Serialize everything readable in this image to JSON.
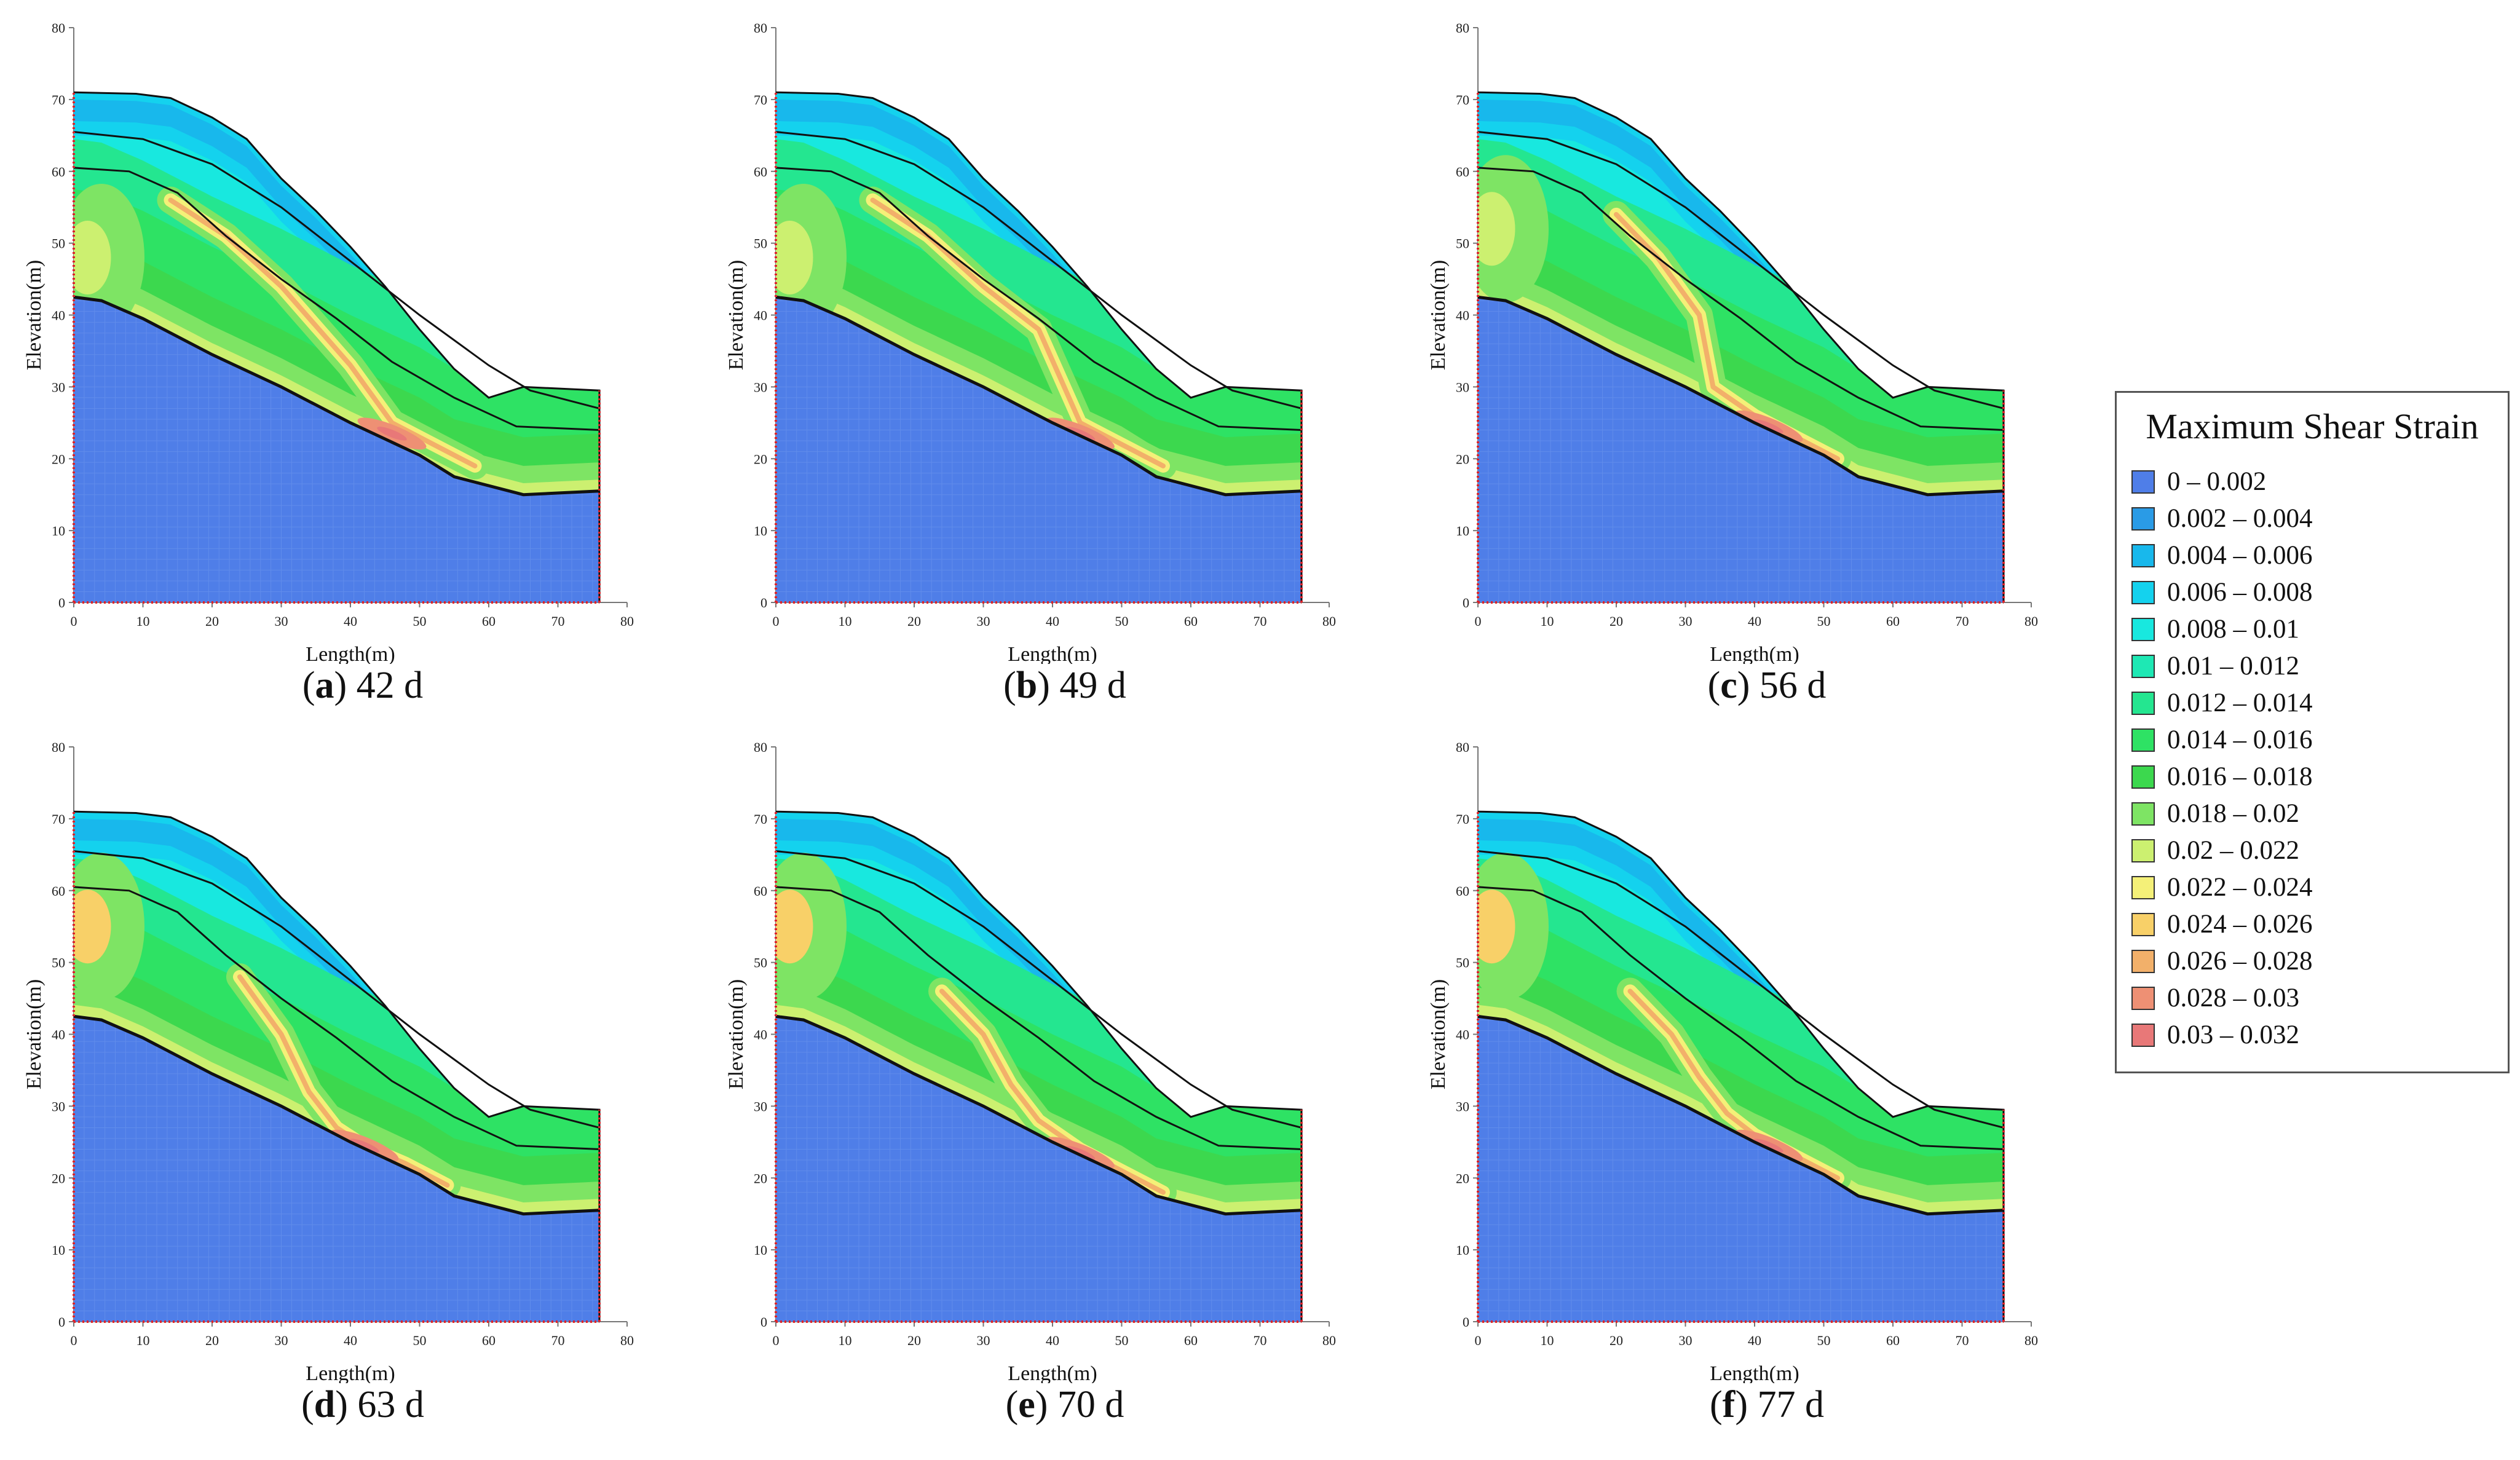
{
  "chart_data": {
    "type": "contour",
    "title": "Maximum Shear Strain",
    "xlabel": "Length(m)",
    "ylabel": "Elevation(m)",
    "xlim": [
      0,
      80
    ],
    "ylim": [
      0,
      80
    ],
    "xticks": [
      "0",
      "10",
      "20",
      "30",
      "40",
      "50",
      "60",
      "70",
      "80"
    ],
    "yticks": [
      "0",
      "10",
      "20",
      "30",
      "40",
      "50",
      "60",
      "70",
      "80"
    ],
    "slope_surface": [
      [
        0,
        71
      ],
      [
        9,
        70.8
      ],
      [
        14,
        70.2
      ],
      [
        20,
        67.5
      ],
      [
        25,
        64.5
      ],
      [
        30,
        59
      ],
      [
        35,
        54.5
      ],
      [
        40,
        49.5
      ],
      [
        45,
        44
      ],
      [
        50,
        38
      ],
      [
        55,
        32.5
      ],
      [
        60,
        28.5
      ],
      [
        65,
        30
      ],
      [
        76,
        29.5
      ]
    ],
    "bedrock_surface": [
      [
        0,
        42.5
      ],
      [
        4,
        42
      ],
      [
        10,
        39.5
      ],
      [
        20,
        34.5
      ],
      [
        30,
        30
      ],
      [
        40,
        25
      ],
      [
        50,
        20.5
      ],
      [
        55,
        17.5
      ],
      [
        65,
        15
      ],
      [
        76,
        15.5
      ]
    ],
    "layer_boundaries": [
      [
        [
          0,
          65.5
        ],
        [
          10,
          64.5
        ],
        [
          20,
          61
        ],
        [
          30,
          55
        ],
        [
          40,
          47.5
        ],
        [
          50,
          40
        ],
        [
          60,
          33
        ],
        [
          66,
          29.5
        ],
        [
          76,
          27
        ]
      ],
      [
        [
          0,
          60.5
        ],
        [
          8,
          60
        ],
        [
          15,
          57
        ],
        [
          22,
          51
        ],
        [
          30,
          45
        ],
        [
          38,
          39.5
        ],
        [
          46,
          33.5
        ],
        [
          55,
          28.5
        ],
        [
          64,
          24.5
        ],
        [
          76,
          24
        ]
      ]
    ],
    "legend": {
      "title": "Maximum Shear Strain",
      "classes": [
        {
          "range": "0 – 0.002",
          "color": "#4f7ee8"
        },
        {
          "range": "0.002 – 0.004",
          "color": "#2a9be6"
        },
        {
          "range": "0.004 – 0.006",
          "color": "#18b8ec"
        },
        {
          "range": "0.006 – 0.008",
          "color": "#14d2ee"
        },
        {
          "range": "0.008 – 0.01",
          "color": "#18e8df"
        },
        {
          "range": "0.01 – 0.012",
          "color": "#1ee8b4"
        },
        {
          "range": "0.012 – 0.014",
          "color": "#24e690"
        },
        {
          "range": "0.014 – 0.016",
          "color": "#2ee264"
        },
        {
          "range": "0.016 – 0.018",
          "color": "#3cd84e"
        },
        {
          "range": "0.018 – 0.02",
          "color": "#7ee464"
        },
        {
          "range": "0.02 – 0.022",
          "color": "#ccf070"
        },
        {
          "range": "0.022 – 0.024",
          "color": "#f4f078"
        },
        {
          "range": "0.024 – 0.026",
          "color": "#f8d068"
        },
        {
          "range": "0.026 – 0.028",
          "color": "#f2b06a"
        },
        {
          "range": "0.028 – 0.03",
          "color": "#ee9074"
        },
        {
          "range": "0.03 – 0.032",
          "color": "#e87878"
        }
      ]
    },
    "panels": [
      {
        "letter": "a",
        "label": " 42 d",
        "band": [
          [
            14,
            56
          ],
          [
            22,
            51
          ],
          [
            30,
            44
          ],
          [
            40,
            33
          ],
          [
            46,
            25
          ],
          [
            52,
            22
          ],
          [
            58,
            19
          ]
        ],
        "peak": [
          46,
          23.5
        ],
        "crown_zone": [
          0,
          48
        ]
      },
      {
        "letter": "b",
        "label": " 49 d",
        "band": [
          [
            14,
            56
          ],
          [
            22,
            51
          ],
          [
            30,
            44
          ],
          [
            38,
            38
          ],
          [
            44,
            25
          ],
          [
            50,
            22
          ],
          [
            56,
            19
          ]
        ],
        "peak": [
          44,
          23.5
        ],
        "crown_zone": [
          0,
          48
        ]
      },
      {
        "letter": "c",
        "label": " 56 d",
        "band": [
          [
            20,
            54
          ],
          [
            26,
            48
          ],
          [
            32,
            40
          ],
          [
            34,
            30
          ],
          [
            40,
            26
          ],
          [
            46,
            23
          ],
          [
            52,
            20
          ]
        ],
        "peak": [
          42,
          24.5
        ],
        "crown_zone": [
          0,
          52
        ]
      },
      {
        "letter": "d",
        "label": " 63 d",
        "band": [
          [
            24,
            48
          ],
          [
            30,
            40
          ],
          [
            34,
            32
          ],
          [
            38,
            27
          ],
          [
            42,
            24.5
          ],
          [
            48,
            22
          ],
          [
            54,
            19
          ]
        ],
        "peak": [
          42,
          24.5
        ],
        "crown_zone": [
          0,
          55
        ]
      },
      {
        "letter": "e",
        "label": " 70 d",
        "band": [
          [
            24,
            46
          ],
          [
            30,
            40
          ],
          [
            34,
            33
          ],
          [
            38,
            28
          ],
          [
            44,
            24
          ],
          [
            50,
            21
          ],
          [
            56,
            18
          ]
        ],
        "peak": [
          44,
          23.5
        ],
        "crown_zone": [
          0,
          55
        ]
      },
      {
        "letter": "f",
        "label": " 77 d",
        "band": [
          [
            22,
            46
          ],
          [
            28,
            40
          ],
          [
            32,
            34
          ],
          [
            36,
            29
          ],
          [
            40,
            26
          ],
          [
            46,
            23
          ],
          [
            52,
            20
          ]
        ],
        "peak": [
          42,
          24.5
        ],
        "crown_zone": [
          0,
          55
        ]
      }
    ]
  }
}
